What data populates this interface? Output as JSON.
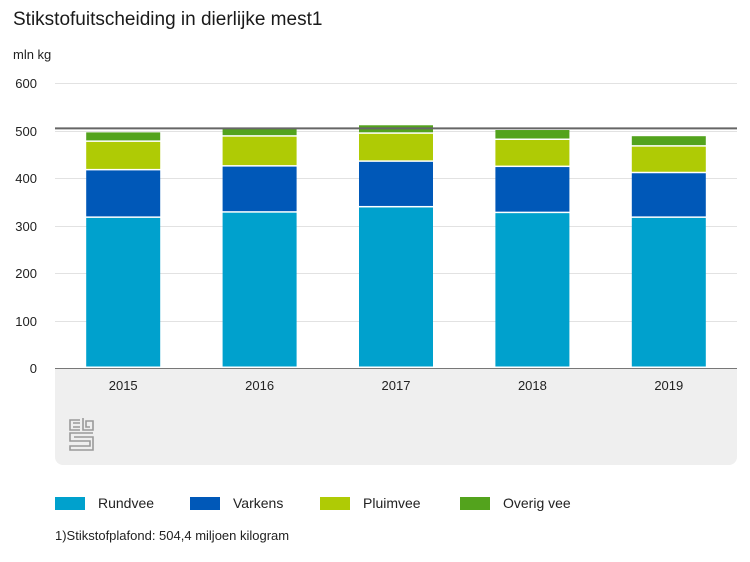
{
  "chart_data": {
    "type": "bar",
    "stacked": true,
    "title": "Stikstofuitscheiding in dierlijke mest1",
    "ylabel": "mln kg",
    "xlabel": "",
    "ylim": [
      0,
      600
    ],
    "yticks": [
      0,
      100,
      200,
      300,
      400,
      500,
      600
    ],
    "grid": true,
    "categories": [
      "2015",
      "2016",
      "2017",
      "2018",
      "2019"
    ],
    "series": [
      {
        "name": "Rundvee",
        "color": "#00a1cd",
        "values": [
          316,
          327,
          338,
          326,
          316
        ]
      },
      {
        "name": "Varkens",
        "color": "#0058b8",
        "values": [
          100,
          97,
          96,
          97,
          94
        ]
      },
      {
        "name": "Pluimvee",
        "color": "#afcb05",
        "values": [
          60,
          63,
          59,
          57,
          56
        ]
      },
      {
        "name": "Overig vee",
        "color": "#53a31d",
        "values": [
          20,
          19,
          18,
          21,
          22
        ]
      }
    ],
    "reference_line": {
      "label": "Stikstofplafond",
      "value": 504.4,
      "color": "#666666"
    },
    "legend_position": "bottom"
  },
  "footnote": "1)Stikstofplafond: 504,4 miljoen kilogram",
  "logo": "cbs-logo"
}
